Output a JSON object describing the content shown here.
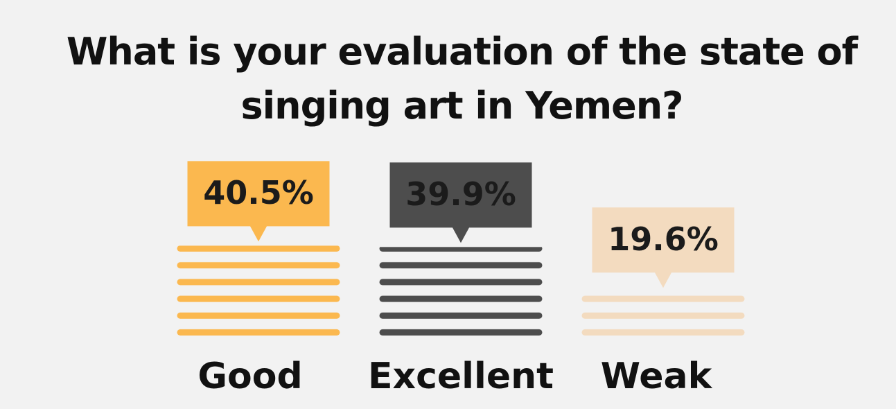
{
  "chart_data": {
    "type": "bar",
    "title": "What is your evaluation of the state of singing art in Yemen?",
    "categories": [
      "Good",
      "Excellent",
      "Weak"
    ],
    "values": [
      40.5,
      39.9,
      19.6
    ],
    "value_labels": [
      "40.5%",
      "39.9%",
      "19.6%"
    ],
    "colors": [
      "#fbb84f",
      "#4d4d4d",
      "#f3dbbf"
    ]
  }
}
